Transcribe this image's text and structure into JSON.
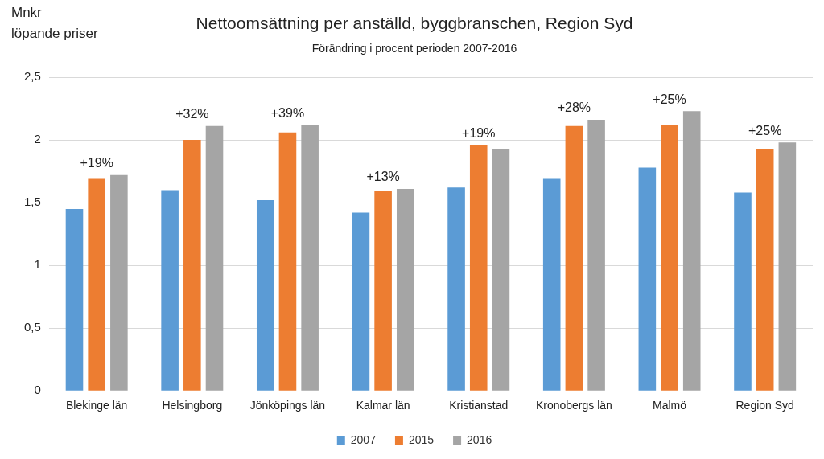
{
  "chart_data": {
    "type": "bar",
    "title": "Nettoomsättning per anställd, byggbranschen, Region Syd",
    "subtitle": "Förändring i procent perioden 2007-2016",
    "y_label": [
      "Mnkr",
      "löpande priser"
    ],
    "categories": [
      "Blekinge län",
      "Helsingborg",
      "Jönköpings län",
      "Kalmar län",
      "Kristianstad",
      "Kronobergs län",
      "Malmö",
      "Region Syd"
    ],
    "series": [
      {
        "name": "2007",
        "color": "#5b9bd5",
        "values": [
          1.45,
          1.6,
          1.52,
          1.42,
          1.62,
          1.69,
          1.78,
          1.58
        ]
      },
      {
        "name": "2015",
        "color": "#ed7d31",
        "values": [
          1.69,
          2.0,
          2.06,
          1.59,
          1.96,
          2.11,
          2.12,
          1.93
        ]
      },
      {
        "name": "2016",
        "color": "#a5a5a5",
        "values": [
          1.72,
          2.11,
          2.12,
          1.61,
          1.93,
          2.16,
          2.23,
          1.98
        ]
      }
    ],
    "annotations": [
      "+19%",
      "+32%",
      "+39%",
      "+13%",
      "+19%",
      "+28%",
      "+25%",
      "+25%"
    ],
    "ylim": [
      0,
      2.5
    ],
    "yticks": [
      0,
      {
        "value": 0.5,
        "label": "0,5"
      },
      1,
      {
        "value": 1.5,
        "label": "1,5"
      },
      2,
      {
        "value": 2.5,
        "label": "2,5"
      }
    ],
    "grid": true,
    "legend": "bottom"
  }
}
